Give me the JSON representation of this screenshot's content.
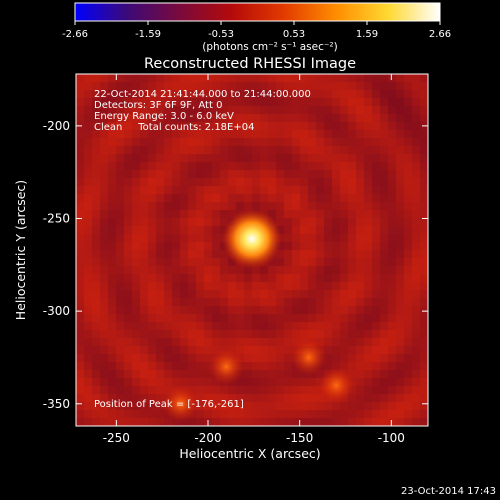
{
  "colorbar": {
    "ticks": [
      "-2.66",
      "-1.59",
      "-0.53",
      "0.53",
      "1.59",
      "2.66"
    ],
    "unit_label": "(photons cm⁻² s⁻¹ asec⁻²)",
    "colormap": [
      "#0000ff",
      "#3c0a78",
      "#7a0a3c",
      "#b40a0a",
      "#e23a00",
      "#ff8c00",
      "#ffd830",
      "#ffffff"
    ]
  },
  "chart_data": {
    "type": "heatmap",
    "title": "Reconstructed RHESSI Image",
    "xlabel": "Heliocentric X (arcsec)",
    "ylabel": "Heliocentric Y (arcsec)",
    "xlim": [
      -272,
      -80
    ],
    "ylim": [
      -362,
      -172
    ],
    "x_ticks": [
      "-250",
      "-200",
      "-150",
      "-100"
    ],
    "y_ticks": [
      "-200",
      "-250",
      "-300",
      "-350"
    ],
    "x_tick_values": [
      -250,
      -200,
      -150,
      -100
    ],
    "y_tick_values": [
      -200,
      -250,
      -300,
      -350
    ],
    "annotations": [
      "22-Oct-2014 21:41:44.000 to 21:44:00.000",
      "Detectors: 3F 6F 9F, Att 0",
      "Energy Range: 3.0 - 6.0 keV",
      "Clean     Total counts: 2.18E+04"
    ],
    "peak_label": "Position of Peak = [-176,-261]",
    "peak": [
      -176,
      -261
    ],
    "secondary_sources": [
      [
        -190,
        -330
      ],
      [
        -145,
        -325
      ],
      [
        -130,
        -340
      ],
      [
        -215,
        -350
      ]
    ]
  },
  "footer": {
    "timestamp": "23-Oct-2014 17:43"
  }
}
